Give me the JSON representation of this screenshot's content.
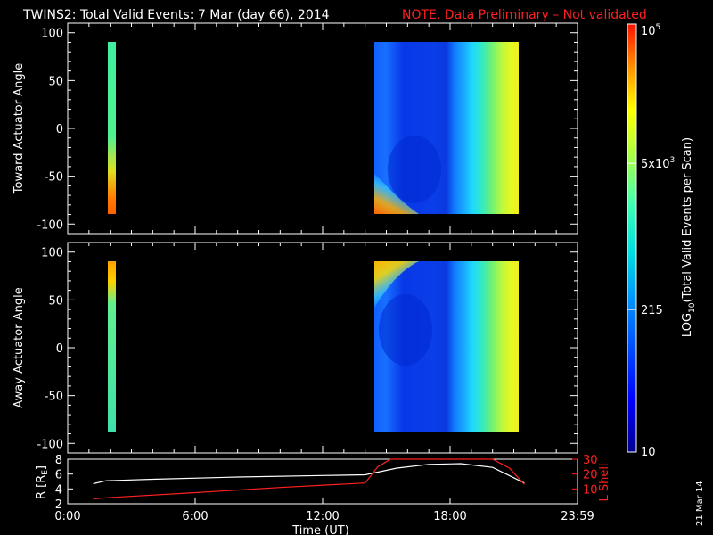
{
  "header": {
    "title": "TWINS2: Total Valid Events:  7 Mar (day  66), 2014",
    "note": "NOTE. Data Preliminary – Not validated",
    "title_color": "#ffffff",
    "note_color": "#ff2020"
  },
  "side_stamp": "21 Mar 14",
  "colorbar": {
    "label": "LOG10(Total Valid Events per Scan)",
    "label_base": "LOG",
    "label_sub": "10",
    "label_rest": "(Total Valid Events per Scan)",
    "scale": "log",
    "range": [
      10,
      100000
    ],
    "colormap": "rainbow (blue → cyan → green → yellow → red)",
    "ticks": [
      {
        "value": 10,
        "label": "10"
      },
      {
        "value": 215,
        "label": "215"
      },
      {
        "value": 5000,
        "label": "5x10",
        "exp": "3"
      },
      {
        "value": 100000,
        "label": "10",
        "exp": "5"
      }
    ]
  },
  "chart_data": [
    {
      "type": "heatmap",
      "ylabel": "Toward Actuator Angle",
      "ylim": [
        -110,
        110
      ],
      "yticks": [
        -100,
        -50,
        0,
        50,
        100
      ],
      "xlim_hours": [
        0,
        24
      ],
      "angle_range": [
        -90,
        90
      ],
      "blocks": [
        {
          "start": "1:47",
          "end": "2:01",
          "description": "narrow scan band, cyan-green, orange near -90"
        },
        {
          "start": "14:45",
          "end": "21:52",
          "description": "blue at 15:00-19:00, cyan 19:00-20:00, green-yellow 20:00-21:52; orange-red at 14:45-15:40 near -90"
        }
      ]
    },
    {
      "type": "heatmap",
      "ylabel": "Away Actuator Angle",
      "ylim": [
        -110,
        110
      ],
      "yticks": [
        -100,
        -50,
        0,
        50,
        100
      ],
      "xlim_hours": [
        0,
        24
      ],
      "angle_range": [
        -90,
        90
      ],
      "blocks": [
        {
          "start": "1:47",
          "end": "2:01",
          "description": "narrow scan band, cyan-green, yellow-orange near +90"
        },
        {
          "start": "14:45",
          "end": "21:52",
          "description": "blue at 15:00-19:00, cyan 19:00-20:00, green-yellow 20:00-21:52; yellow-orange at 14:45-15:40 near +90"
        }
      ]
    },
    {
      "type": "line",
      "ylabel": "R [RE]",
      "ylabel_base": "R [R",
      "ylabel_sub": "E",
      "ylabel_end": "]",
      "ylim": [
        2,
        8
      ],
      "yticks": [
        2,
        4,
        6,
        8
      ],
      "y2label": "L Shell",
      "y2lim": [
        0,
        30
      ],
      "y2ticks": [
        10,
        20,
        30
      ],
      "xlabel": "Time (UT)",
      "xticks": [
        "0:00",
        "6:00",
        "12:00",
        "18:00",
        "23:59"
      ],
      "xtick_hours": [
        0,
        6,
        12,
        18,
        24
      ],
      "series": [
        {
          "key": "R",
          "color": "#ffffff",
          "axis": "left",
          "x_hours": [
            1.2,
            1.8,
            4,
            8,
            12,
            14,
            15.5,
            17,
            18.5,
            20,
            21.5
          ],
          "y": [
            4.7,
            5.1,
            5.3,
            5.6,
            5.8,
            5.9,
            6.8,
            7.3,
            7.4,
            6.9,
            4.8
          ]
        },
        {
          "key": "L",
          "color": "#ff2020",
          "axis": "right",
          "x_hours": [
            1.2,
            1.8,
            6,
            10,
            14,
            14.6,
            15.2,
            20,
            20.8,
            21.5
          ],
          "y": [
            3.3,
            4,
            7.5,
            11,
            14,
            25,
            31,
            31,
            24,
            13
          ]
        }
      ]
    }
  ]
}
